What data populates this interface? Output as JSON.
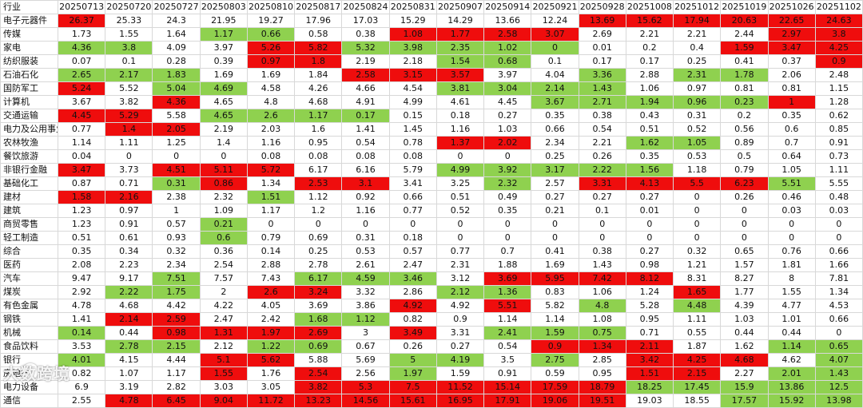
{
  "table": {
    "corner_label": "行业",
    "dates": [
      "20250713",
      "20250720",
      "20250727",
      "20250803",
      "20250810",
      "20250817",
      "20250824",
      "20250831",
      "20250907",
      "20250914",
      "20250921",
      "20250928",
      "20251008",
      "20251012",
      "20251019",
      "20251026",
      "20251102"
    ],
    "rows": [
      {
        "name": "电子元器件",
        "values": [
          "26.37",
          "25.33",
          "24.3",
          "21.95",
          "19.27",
          "17.96",
          "17.03",
          "15.29",
          "14.29",
          "13.66",
          "12.24",
          "13.69",
          "15.62",
          "17.94",
          "20.63",
          "22.65",
          "24.63"
        ],
        "colors": [
          "h",
          "n",
          "n",
          "n",
          "n",
          "n",
          "n",
          "n",
          "n",
          "n",
          "n",
          "h",
          "h",
          "h",
          "h",
          "h",
          "h"
        ]
      },
      {
        "name": "传媒",
        "values": [
          "1.73",
          "1.55",
          "1.64",
          "1.17",
          "0.66",
          "0.58",
          "0.38",
          "1.08",
          "1.77",
          "2.58",
          "3.07",
          "2.69",
          "2.21",
          "2.21",
          "2.44",
          "2.97",
          "3.8"
        ],
        "colors": [
          "n",
          "n",
          "n",
          "l",
          "l",
          "n",
          "n",
          "h",
          "h",
          "h",
          "h",
          "n",
          "n",
          "n",
          "n",
          "h",
          "h"
        ]
      },
      {
        "name": "家电",
        "values": [
          "4.36",
          "3.8",
          "4.09",
          "3.97",
          "5.26",
          "5.82",
          "5.32",
          "3.98",
          "2.35",
          "1.02",
          "0",
          "0.01",
          "0.2",
          "0.4",
          "1.59",
          "3.47",
          "4.25"
        ],
        "colors": [
          "l",
          "l",
          "n",
          "n",
          "h",
          "h",
          "l",
          "l",
          "l",
          "l",
          "l",
          "n",
          "n",
          "n",
          "h",
          "h",
          "h"
        ]
      },
      {
        "name": "纺织服装",
        "values": [
          "0.07",
          "0.1",
          "0.28",
          "0.39",
          "0.97",
          "1.8",
          "2.19",
          "2.18",
          "1.54",
          "0.68",
          "0.1",
          "0.17",
          "0.17",
          "0.25",
          "0.41",
          "0.37",
          "0.9"
        ],
        "colors": [
          "n",
          "n",
          "n",
          "n",
          "h",
          "h",
          "n",
          "n",
          "l",
          "l",
          "n",
          "n",
          "n",
          "n",
          "n",
          "n",
          "h"
        ]
      },
      {
        "name": "石油石化",
        "values": [
          "2.65",
          "2.17",
          "1.83",
          "1.69",
          "1.69",
          "1.84",
          "2.58",
          "3.15",
          "3.57",
          "3.97",
          "4.04",
          "3.36",
          "2.88",
          "2.31",
          "1.78",
          "2.06",
          "2.48"
        ],
        "colors": [
          "l",
          "l",
          "l",
          "n",
          "n",
          "n",
          "h",
          "h",
          "h",
          "n",
          "n",
          "l",
          "n",
          "l",
          "l",
          "n",
          "n"
        ]
      },
      {
        "name": "国防军工",
        "values": [
          "5.24",
          "5.52",
          "5.04",
          "4.69",
          "4.58",
          "4.26",
          "4.66",
          "4.54",
          "3.81",
          "3.04",
          "2.14",
          "1.43",
          "1.06",
          "0.97",
          "0.81",
          "0.81",
          "1.15"
        ],
        "colors": [
          "h",
          "n",
          "l",
          "l",
          "n",
          "n",
          "n",
          "n",
          "l",
          "l",
          "l",
          "l",
          "n",
          "n",
          "n",
          "n",
          "n"
        ]
      },
      {
        "name": "计算机",
        "values": [
          "3.67",
          "3.82",
          "4.36",
          "4.65",
          "4.8",
          "4.68",
          "4.91",
          "4.99",
          "4.61",
          "4.45",
          "3.67",
          "2.71",
          "1.94",
          "0.96",
          "0.23",
          "1",
          "1.28"
        ],
        "colors": [
          "n",
          "n",
          "h",
          "n",
          "n",
          "n",
          "n",
          "n",
          "n",
          "n",
          "l",
          "l",
          "l",
          "l",
          "l",
          "h",
          "n"
        ]
      },
      {
        "name": "交通运输",
        "values": [
          "4.45",
          "5.29",
          "5.58",
          "4.65",
          "2.6",
          "1.17",
          "0.17",
          "0.15",
          "0.18",
          "0.27",
          "0.35",
          "0.38",
          "0.43",
          "0.31",
          "0.2",
          "0.35",
          "0.62"
        ],
        "colors": [
          "h",
          "h",
          "n",
          "l",
          "l",
          "l",
          "l",
          "n",
          "n",
          "n",
          "n",
          "n",
          "n",
          "n",
          "n",
          "n",
          "n"
        ]
      },
      {
        "name": "电力及公用事业",
        "values": [
          "0.77",
          "1.4",
          "2.05",
          "2.19",
          "2.03",
          "1.6",
          "1.41",
          "1.45",
          "1.16",
          "1.03",
          "0.66",
          "0.54",
          "0.51",
          "0.52",
          "0.56",
          "0.6",
          "0.85"
        ],
        "colors": [
          "n",
          "h",
          "h",
          "n",
          "n",
          "n",
          "n",
          "n",
          "n",
          "n",
          "n",
          "n",
          "n",
          "n",
          "n",
          "n",
          "n"
        ]
      },
      {
        "name": "农林牧渔",
        "values": [
          "1.14",
          "1.11",
          "1.25",
          "1.4",
          "1.16",
          "0.95",
          "0.54",
          "0.78",
          "1.37",
          "2.02",
          "2.34",
          "2.21",
          "1.62",
          "1.05",
          "0.89",
          "0.7",
          "0.91"
        ],
        "colors": [
          "n",
          "n",
          "n",
          "n",
          "n",
          "n",
          "n",
          "n",
          "h",
          "h",
          "n",
          "n",
          "l",
          "l",
          "n",
          "n",
          "n"
        ]
      },
      {
        "name": "餐饮旅游",
        "values": [
          "0.04",
          "0",
          "0",
          "0",
          "0.08",
          "0.08",
          "0.08",
          "0.08",
          "0",
          "0",
          "0.25",
          "0.26",
          "0.35",
          "0.53",
          "0.5",
          "0.64",
          "0.73"
        ],
        "colors": [
          "n",
          "n",
          "n",
          "n",
          "n",
          "n",
          "n",
          "n",
          "n",
          "n",
          "n",
          "n",
          "n",
          "n",
          "n",
          "n",
          "n"
        ]
      },
      {
        "name": "非银行金融",
        "values": [
          "3.47",
          "3.73",
          "4.51",
          "5.11",
          "5.72",
          "6.17",
          "6.16",
          "5.79",
          "4.99",
          "3.92",
          "3.17",
          "2.22",
          "1.56",
          "1.18",
          "0.79",
          "1.05",
          "1.11"
        ],
        "colors": [
          "h",
          "n",
          "h",
          "h",
          "h",
          "n",
          "n",
          "n",
          "l",
          "l",
          "l",
          "l",
          "l",
          "n",
          "n",
          "n",
          "n"
        ]
      },
      {
        "name": "基础化工",
        "values": [
          "0.87",
          "0.71",
          "0.31",
          "0.86",
          "1.34",
          "2.53",
          "3.1",
          "3.41",
          "3.25",
          "2.32",
          "2.57",
          "3.31",
          "4.13",
          "5.5",
          "6.23",
          "5.51",
          "5.55"
        ],
        "colors": [
          "n",
          "n",
          "l",
          "h",
          "n",
          "h",
          "h",
          "n",
          "n",
          "l",
          "n",
          "h",
          "h",
          "h",
          "h",
          "l",
          "n"
        ]
      },
      {
        "name": "建材",
        "values": [
          "1.58",
          "2.16",
          "2.38",
          "2.32",
          "1.51",
          "1.12",
          "0.92",
          "0.66",
          "0.51",
          "0.49",
          "0.27",
          "0.27",
          "0.27",
          "0",
          "0.26",
          "0.46",
          "0.48"
        ],
        "colors": [
          "h",
          "h",
          "n",
          "n",
          "l",
          "n",
          "n",
          "n",
          "n",
          "n",
          "n",
          "n",
          "n",
          "n",
          "n",
          "n",
          "n"
        ]
      },
      {
        "name": "建筑",
        "values": [
          "1.23",
          "0.97",
          "1",
          "1.09",
          "1.17",
          "1.2",
          "1.16",
          "0.77",
          "0.52",
          "0.35",
          "0.21",
          "0.1",
          "0.01",
          "0",
          "0",
          "0.03",
          "0.03"
        ],
        "colors": [
          "n",
          "n",
          "n",
          "n",
          "n",
          "n",
          "n",
          "n",
          "n",
          "n",
          "n",
          "n",
          "n",
          "n",
          "n",
          "n",
          "n"
        ]
      },
      {
        "name": "商贸零售",
        "values": [
          "1.23",
          "0.91",
          "0.57",
          "0.21",
          "0",
          "0",
          "0",
          "0",
          "0",
          "0",
          "0",
          "0",
          "0",
          "0",
          "0",
          "0",
          "0"
        ],
        "colors": [
          "n",
          "n",
          "n",
          "l",
          "n",
          "n",
          "n",
          "n",
          "n",
          "n",
          "n",
          "n",
          "n",
          "n",
          "n",
          "n",
          "n"
        ]
      },
      {
        "name": "轻工制造",
        "values": [
          "0.51",
          "0.61",
          "0.93",
          "0.6",
          "0.79",
          "0.69",
          "0.31",
          "0.18",
          "0",
          "0",
          "0",
          "0",
          "0",
          "0",
          "0",
          "0",
          "0"
        ],
        "colors": [
          "n",
          "n",
          "n",
          "l",
          "n",
          "n",
          "n",
          "n",
          "n",
          "n",
          "n",
          "n",
          "n",
          "n",
          "n",
          "n",
          "n"
        ]
      },
      {
        "name": "综合",
        "values": [
          "0.35",
          "0.34",
          "0.32",
          "0.36",
          "0.14",
          "0.25",
          "0.53",
          "0.57",
          "0.77",
          "0.7",
          "0.41",
          "0.38",
          "0.27",
          "0.32",
          "0.65",
          "0.76",
          "0.66"
        ],
        "colors": [
          "n",
          "n",
          "n",
          "n",
          "n",
          "n",
          "n",
          "n",
          "n",
          "n",
          "n",
          "n",
          "n",
          "n",
          "n",
          "n",
          "n"
        ]
      },
      {
        "name": "医药",
        "values": [
          "2.08",
          "2.23",
          "2.34",
          "2.54",
          "2.88",
          "2.78",
          "2.61",
          "2.47",
          "2.31",
          "1.88",
          "1.69",
          "1.43",
          "0.98",
          "1.21",
          "1.57",
          "1.81",
          "1.66"
        ],
        "colors": [
          "n",
          "n",
          "n",
          "n",
          "n",
          "n",
          "n",
          "n",
          "n",
          "n",
          "n",
          "n",
          "n",
          "n",
          "n",
          "n",
          "n"
        ]
      },
      {
        "name": "汽车",
        "values": [
          "9.47",
          "9.17",
          "7.51",
          "7.57",
          "7.43",
          "6.17",
          "4.59",
          "3.46",
          "3.12",
          "3.69",
          "5.95",
          "7.42",
          "8.12",
          "8.31",
          "8.27",
          "8",
          "7.81"
        ],
        "colors": [
          "n",
          "n",
          "l",
          "n",
          "n",
          "l",
          "l",
          "l",
          "n",
          "h",
          "h",
          "h",
          "h",
          "n",
          "n",
          "n",
          "n"
        ]
      },
      {
        "name": "煤炭",
        "values": [
          "2.92",
          "2.22",
          "1.75",
          "2",
          "2.6",
          "3.24",
          "3.32",
          "2.86",
          "2.12",
          "1.36",
          "0.83",
          "1.06",
          "1.24",
          "1.65",
          "1.77",
          "1.55",
          "1.34"
        ],
        "colors": [
          "n",
          "l",
          "l",
          "n",
          "h",
          "h",
          "n",
          "n",
          "l",
          "l",
          "n",
          "n",
          "n",
          "h",
          "n",
          "n",
          "n"
        ]
      },
      {
        "name": "有色金属",
        "values": [
          "4.78",
          "4.68",
          "4.42",
          "4.22",
          "4.05",
          "3.69",
          "3.86",
          "4.92",
          "4.92",
          "5.51",
          "5.82",
          "4.8",
          "5.28",
          "4.48",
          "4.39",
          "4.77",
          "4.53"
        ],
        "colors": [
          "n",
          "n",
          "n",
          "n",
          "n",
          "n",
          "n",
          "h",
          "n",
          "h",
          "n",
          "l",
          "n",
          "l",
          "n",
          "n",
          "n"
        ]
      },
      {
        "name": "钢铁",
        "values": [
          "1.41",
          "2.14",
          "2.59",
          "2.47",
          "2.42",
          "1.68",
          "1.12",
          "0.82",
          "0.9",
          "1.14",
          "1.14",
          "1.08",
          "0.95",
          "1.11",
          "1.03",
          "1.01",
          "0.66"
        ],
        "colors": [
          "n",
          "h",
          "h",
          "n",
          "n",
          "l",
          "l",
          "n",
          "n",
          "n",
          "n",
          "n",
          "n",
          "n",
          "n",
          "n",
          "n"
        ]
      },
      {
        "name": "机械",
        "values": [
          "0.14",
          "0.44",
          "0.98",
          "1.31",
          "1.97",
          "2.69",
          "3",
          "3.49",
          "3.31",
          "2.41",
          "1.59",
          "0.75",
          "0.71",
          "0.55",
          "0.44",
          "0.44",
          "0"
        ],
        "colors": [
          "l",
          "n",
          "h",
          "h",
          "h",
          "h",
          "n",
          "h",
          "n",
          "l",
          "l",
          "l",
          "n",
          "n",
          "n",
          "n",
          "n"
        ]
      },
      {
        "name": "食品饮料",
        "values": [
          "3.53",
          "2.78",
          "2.15",
          "2.12",
          "1.22",
          "0.69",
          "0.67",
          "0.26",
          "0.27",
          "0.54",
          "0.9",
          "1.34",
          "2.11",
          "1.87",
          "1.62",
          "1.14",
          "0.65"
        ],
        "colors": [
          "n",
          "l",
          "l",
          "n",
          "l",
          "l",
          "n",
          "n",
          "n",
          "n",
          "h",
          "h",
          "h",
          "n",
          "n",
          "l",
          "l"
        ]
      },
      {
        "name": "银行",
        "values": [
          "4.01",
          "4.15",
          "4.44",
          "5.1",
          "5.62",
          "5.88",
          "5.69",
          "5",
          "4.19",
          "3.5",
          "2.75",
          "2.85",
          "3.42",
          "4.25",
          "4.68",
          "4.62",
          "4.07"
        ],
        "colors": [
          "l",
          "n",
          "n",
          "h",
          "h",
          "n",
          "n",
          "l",
          "l",
          "n",
          "l",
          "n",
          "h",
          "h",
          "h",
          "n",
          "l"
        ]
      },
      {
        "name": "房地产",
        "values": [
          "0.82",
          "1.07",
          "1.17",
          "1.55",
          "1.76",
          "2.54",
          "2.56",
          "1.97",
          "1.59",
          "0.91",
          "0.59",
          "0.95",
          "1.51",
          "2.15",
          "2.27",
          "2.01",
          "1.43"
        ],
        "colors": [
          "n",
          "n",
          "n",
          "h",
          "n",
          "h",
          "n",
          "l",
          "n",
          "n",
          "n",
          "n",
          "h",
          "h",
          "n",
          "l",
          "l"
        ]
      },
      {
        "name": "电力设备",
        "values": [
          "6.9",
          "3.19",
          "2.82",
          "3.03",
          "3.05",
          "3.82",
          "5.3",
          "7.5",
          "11.52",
          "15.14",
          "17.59",
          "18.79",
          "18.25",
          "17.45",
          "15.9",
          "13.86",
          "12.5"
        ],
        "colors": [
          "n",
          "n",
          "n",
          "n",
          "n",
          "h",
          "h",
          "h",
          "h",
          "h",
          "h",
          "h",
          "l",
          "l",
          "l",
          "l",
          "l"
        ]
      },
      {
        "name": "通信",
        "values": [
          "2.55",
          "4.78",
          "6.45",
          "9.04",
          "11.72",
          "13.23",
          "14.56",
          "15.61",
          "16.95",
          "17.91",
          "19.06",
          "19.51",
          "19.03",
          "18.55",
          "17.57",
          "15.92",
          "13.98"
        ],
        "colors": [
          "n",
          "h",
          "h",
          "h",
          "h",
          "h",
          "h",
          "h",
          "h",
          "h",
          "h",
          "h",
          "n",
          "n",
          "l",
          "l",
          "l"
        ]
      }
    ]
  },
  "colors": {
    "high": "#ef0d0d",
    "low": "#8fd14f",
    "neutral": "#ffffff"
  },
  "watermark": "大数跨境"
}
